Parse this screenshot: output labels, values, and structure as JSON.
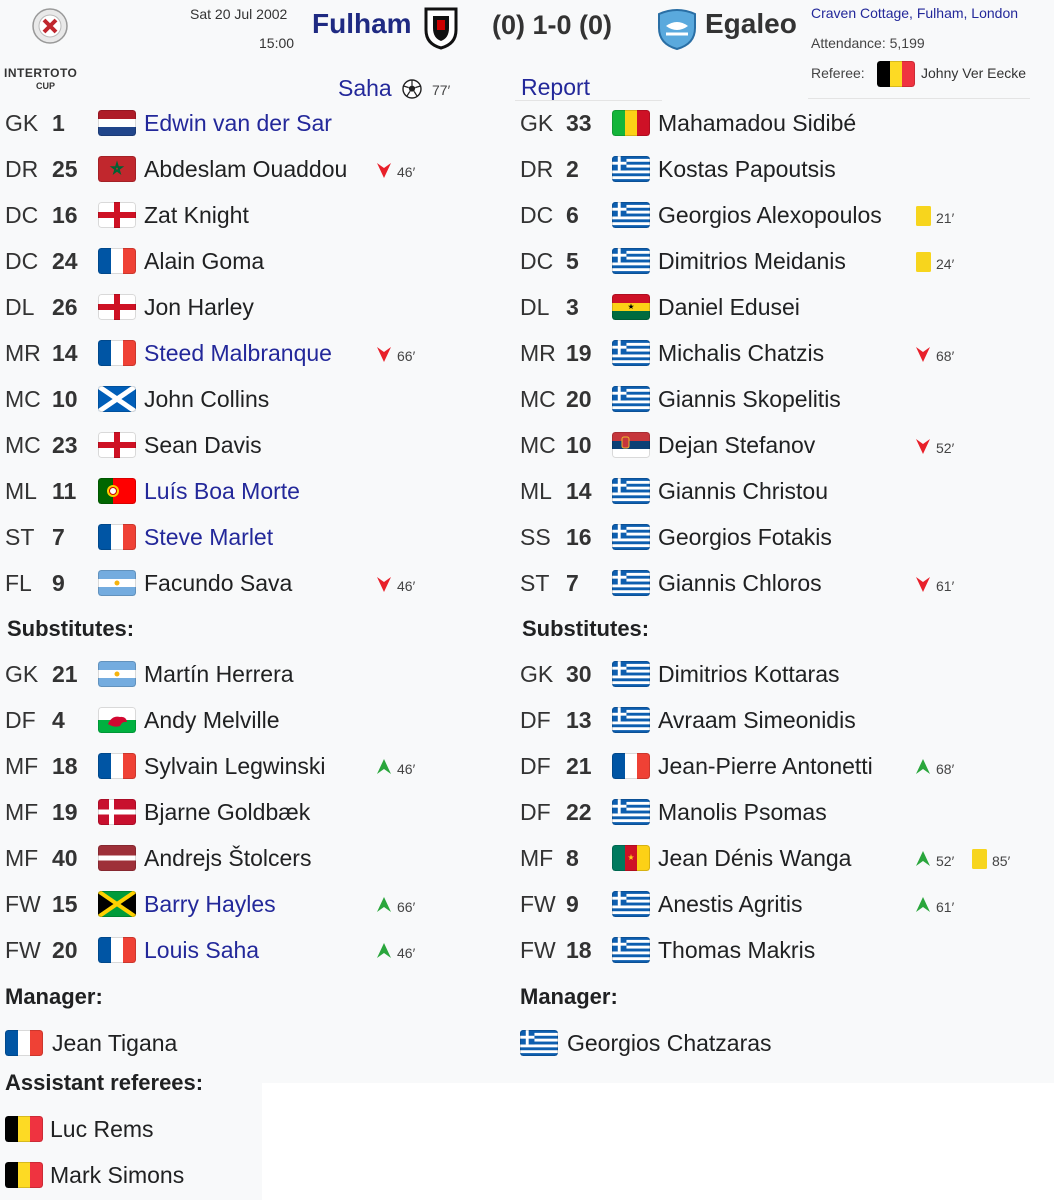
{
  "header": {
    "competition": {
      "line1": "INTERTOTO",
      "line2": "CUP"
    },
    "date": "Sat 20 Jul 2002",
    "time": "15:00",
    "home_team": "Fulham",
    "score": "(0) 1-0 (0)",
    "away_team": "Egaleo",
    "venue": "Craven Cottage, Fulham, London",
    "attendance": "Attendance: 5,199",
    "referee_label": "Referee:",
    "referee": {
      "name": "Johny Ver Eecke",
      "flag": "be"
    }
  },
  "goals": [
    {
      "scorer": "Saha",
      "minute": "77′"
    }
  ],
  "report": "Report",
  "home": {
    "starters": [
      {
        "pos": "GK",
        "number": 1,
        "name": "Edwin van der Sar",
        "flag": "nl",
        "link": true,
        "events": []
      },
      {
        "pos": "DR",
        "number": 25,
        "name": "Abdeslam Ouaddou",
        "flag": "ma",
        "link": false,
        "events": [
          {
            "type": "sub_off",
            "minute": "46′"
          }
        ]
      },
      {
        "pos": "DC",
        "number": 16,
        "name": "Zat Knight",
        "flag": "en",
        "link": false,
        "events": []
      },
      {
        "pos": "DC",
        "number": 24,
        "name": "Alain Goma",
        "flag": "fr",
        "link": false,
        "events": []
      },
      {
        "pos": "DL",
        "number": 26,
        "name": "Jon Harley",
        "flag": "en",
        "link": false,
        "events": []
      },
      {
        "pos": "MR",
        "number": 14,
        "name": "Steed Malbranque",
        "flag": "fr",
        "link": true,
        "events": [
          {
            "type": "sub_off",
            "minute": "66′"
          }
        ]
      },
      {
        "pos": "MC",
        "number": 10,
        "name": "John Collins",
        "flag": "sco",
        "link": false,
        "events": []
      },
      {
        "pos": "MC",
        "number": 23,
        "name": "Sean Davis",
        "flag": "en",
        "link": false,
        "events": []
      },
      {
        "pos": "ML",
        "number": 11,
        "name": "Luís Boa Morte",
        "flag": "pt",
        "link": true,
        "events": []
      },
      {
        "pos": "ST",
        "number": 7,
        "name": "Steve Marlet",
        "flag": "fr",
        "link": true,
        "events": []
      },
      {
        "pos": "FL",
        "number": 9,
        "name": "Facundo Sava",
        "flag": "ar",
        "link": false,
        "events": [
          {
            "type": "sub_off",
            "minute": "46′"
          }
        ]
      }
    ],
    "substitutes_label": "Substitutes:",
    "substitutes": [
      {
        "pos": "GK",
        "number": 21,
        "name": "Martín Herrera",
        "flag": "ar",
        "link": false,
        "events": []
      },
      {
        "pos": "DF",
        "number": 4,
        "name": "Andy Melville",
        "flag": "wa",
        "link": false,
        "events": []
      },
      {
        "pos": "MF",
        "number": 18,
        "name": "Sylvain Legwinski",
        "flag": "fr",
        "link": false,
        "events": [
          {
            "type": "sub_on",
            "minute": "46′"
          }
        ]
      },
      {
        "pos": "MF",
        "number": 19,
        "name": "Bjarne Goldbæk",
        "flag": "dk",
        "link": false,
        "events": []
      },
      {
        "pos": "MF",
        "number": 40,
        "name": "Andrejs Štolcers",
        "flag": "lv",
        "link": false,
        "events": []
      },
      {
        "pos": "FW",
        "number": 15,
        "name": "Barry Hayles",
        "flag": "jm",
        "link": true,
        "events": [
          {
            "type": "sub_on",
            "minute": "66′"
          }
        ]
      },
      {
        "pos": "FW",
        "number": 20,
        "name": "Louis Saha",
        "flag": "fr",
        "link": true,
        "events": [
          {
            "type": "sub_on",
            "minute": "46′"
          }
        ]
      }
    ],
    "manager_label": "Manager:",
    "manager": {
      "name": "Jean Tigana",
      "flag": "fr"
    }
  },
  "away": {
    "starters": [
      {
        "pos": "GK",
        "number": 33,
        "name": "Mahamadou Sidibé",
        "flag": "ml",
        "link": false,
        "events": []
      },
      {
        "pos": "DR",
        "number": 2,
        "name": "Kostas Papoutsis",
        "flag": "gr",
        "link": false,
        "events": []
      },
      {
        "pos": "DC",
        "number": 6,
        "name": "Georgios Alexopoulos",
        "flag": "gr",
        "link": false,
        "events": [
          {
            "type": "yellow",
            "minute": "21′"
          }
        ]
      },
      {
        "pos": "DC",
        "number": 5,
        "name": "Dimitrios Meidanis",
        "flag": "gr",
        "link": false,
        "events": [
          {
            "type": "yellow",
            "minute": "24′"
          }
        ]
      },
      {
        "pos": "DL",
        "number": 3,
        "name": "Daniel Edusei",
        "flag": "gh",
        "link": false,
        "events": []
      },
      {
        "pos": "MR",
        "number": 19,
        "name": "Michalis Chatzis",
        "flag": "gr",
        "link": false,
        "events": [
          {
            "type": "sub_off",
            "minute": "68′"
          }
        ]
      },
      {
        "pos": "MC",
        "number": 20,
        "name": "Giannis Skopelitis",
        "flag": "gr",
        "link": false,
        "events": []
      },
      {
        "pos": "MC",
        "number": 10,
        "name": "Dejan Stefanov",
        "flag": "rs",
        "link": false,
        "events": [
          {
            "type": "sub_off",
            "minute": "52′"
          }
        ]
      },
      {
        "pos": "ML",
        "number": 14,
        "name": "Giannis Christou",
        "flag": "gr",
        "link": false,
        "events": []
      },
      {
        "pos": "SS",
        "number": 16,
        "name": "Georgios Fotakis",
        "flag": "gr",
        "link": false,
        "events": []
      },
      {
        "pos": "ST",
        "number": 7,
        "name": "Giannis Chloros",
        "flag": "gr",
        "link": false,
        "events": [
          {
            "type": "sub_off",
            "minute": "61′"
          }
        ]
      }
    ],
    "substitutes_label": "Substitutes:",
    "substitutes": [
      {
        "pos": "GK",
        "number": 30,
        "name": "Dimitrios Kottaras",
        "flag": "gr",
        "link": false,
        "events": []
      },
      {
        "pos": "DF",
        "number": 13,
        "name": "Avraam Simeonidis",
        "flag": "gr",
        "link": false,
        "events": []
      },
      {
        "pos": "DF",
        "number": 21,
        "name": "Jean-Pierre Antonetti",
        "flag": "fr",
        "link": false,
        "events": [
          {
            "type": "sub_on",
            "minute": "68′"
          }
        ]
      },
      {
        "pos": "DF",
        "number": 22,
        "name": "Manolis Psomas",
        "flag": "gr",
        "link": false,
        "events": []
      },
      {
        "pos": "MF",
        "number": 8,
        "name": "Jean Dénis Wanga",
        "flag": "cm",
        "link": false,
        "events": [
          {
            "type": "sub_on",
            "minute": "52′"
          },
          {
            "type": "yellow",
            "minute": "85′"
          }
        ]
      },
      {
        "pos": "FW",
        "number": 9,
        "name": "Anestis Agritis",
        "flag": "gr",
        "link": false,
        "events": [
          {
            "type": "sub_on",
            "minute": "61′"
          }
        ]
      },
      {
        "pos": "FW",
        "number": 18,
        "name": "Thomas Makris",
        "flag": "gr",
        "link": false,
        "events": []
      }
    ],
    "manager_label": "Manager:",
    "manager": {
      "name": "Georgios Chatzaras",
      "flag": "gr"
    }
  },
  "assistant_referees": {
    "label": "Assistant referees:",
    "officials": [
      {
        "name": "Luc Rems",
        "flag": "be"
      },
      {
        "name": "Mark Simons",
        "flag": "be"
      }
    ]
  }
}
